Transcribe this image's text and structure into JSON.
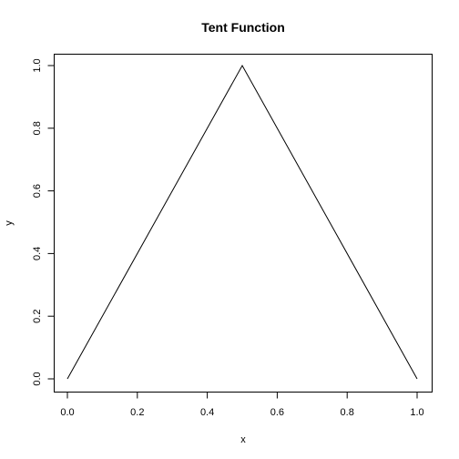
{
  "chart_data": {
    "type": "line",
    "title": "Tent Function",
    "xlabel": "x",
    "ylabel": "y",
    "xlim": [
      0,
      1
    ],
    "ylim": [
      0,
      1
    ],
    "x_ticks": [
      "0.0",
      "0.2",
      "0.4",
      "0.6",
      "0.8",
      "1.0"
    ],
    "y_ticks": [
      "0.0",
      "0.2",
      "0.4",
      "0.6",
      "0.8",
      "1.0"
    ],
    "grid": false,
    "legend": "none",
    "series": [
      {
        "color": "#000000",
        "x": [
          0.0,
          0.5,
          1.0
        ],
        "y": [
          0.0,
          1.0,
          0.0
        ]
      }
    ]
  }
}
